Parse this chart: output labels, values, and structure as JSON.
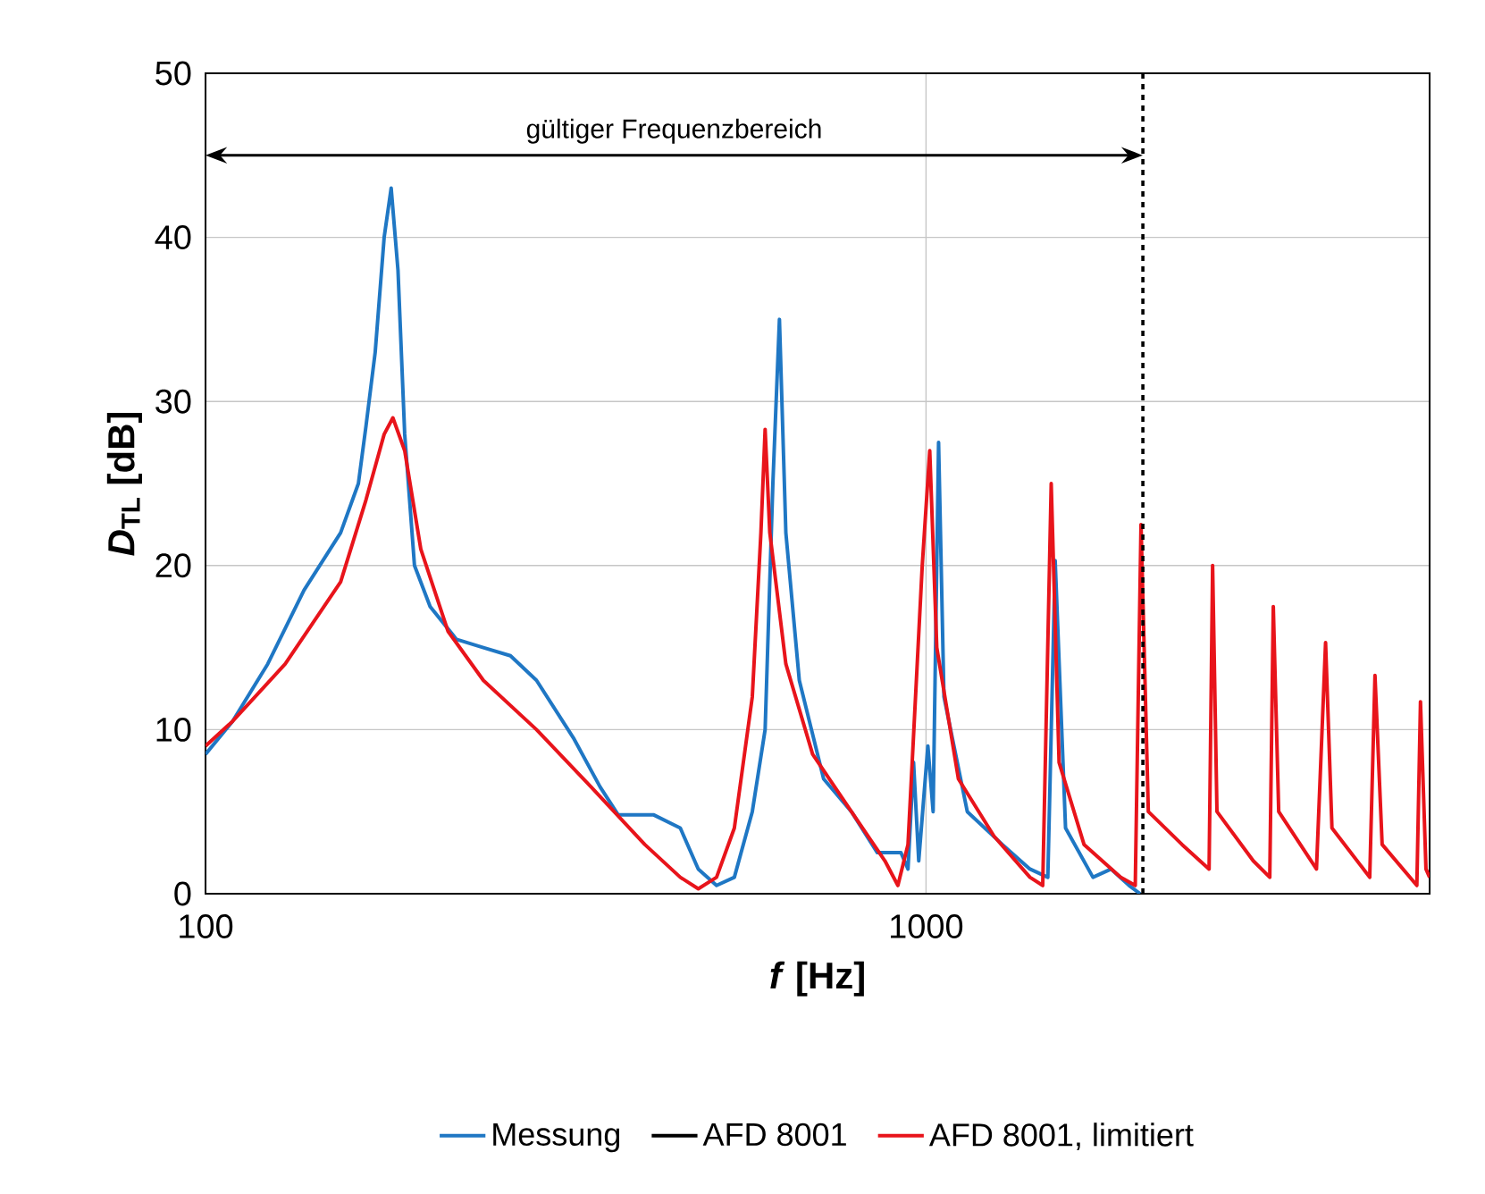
{
  "chart_data": {
    "type": "line",
    "xlabel": "*f* [Hz]",
    "ylabel": "*D*$_{TL}$ [dB]",
    "log": "x",
    "xlim": [
      100,
      5000
    ],
    "xticks": [
      100,
      1000
    ],
    "ylim": [
      0,
      50
    ],
    "yticks": [
      0,
      10,
      20,
      30,
      40,
      50
    ],
    "grid": true,
    "legend": "bottom",
    "ref_lines": [
      {
        "axis": "x",
        "value": 2000,
        "color": "#000000",
        "line_style": "dashed"
      }
    ],
    "annotations": [
      "gültiger Frequenzbereich"
    ],
    "series": [
      {
        "name": "Messung",
        "color": "#1f77c4",
        "x": [
          100,
          109,
          122,
          137,
          154,
          163,
          167,
          172,
          177,
          181,
          185,
          189,
          195,
          205,
          223,
          243,
          265,
          288,
          324,
          353,
          374,
          419,
          456,
          483,
          512,
          542,
          574,
          598,
          613,
          626,
          639,
          667,
          721,
          788,
          856,
          923,
          944,
          961,
          977,
          1006,
          1023,
          1041,
          1059,
          1141,
          1276,
          1394,
          1476,
          1511,
          1562,
          1705,
          1807,
          1914,
          1982
        ],
        "values": [
          8.5,
          10.5,
          14,
          18.5,
          22,
          25,
          28.5,
          33,
          40,
          43,
          38,
          28,
          20,
          17.5,
          15.5,
          15,
          14.5,
          13,
          9.5,
          6.5,
          4.8,
          4.8,
          4,
          1.5,
          0.5,
          1,
          5,
          10,
          25,
          35,
          22,
          13,
          7,
          5,
          2.5,
          2.5,
          1.5,
          8,
          2,
          9,
          5,
          27.5,
          12,
          5,
          3,
          1.5,
          1,
          20.3,
          4,
          1,
          1.5,
          0.5,
          0
        ]
      },
      {
        "name": "AFD 8001",
        "color": "#000000"
      },
      {
        "name": "AFD 8001, limitiert",
        "color": "#e8141b",
        "x": [
          100,
          109,
          129,
          154,
          167,
          177,
          182,
          189,
          199,
          217,
          243,
          288,
          343,
          407,
          456,
          483,
          512,
          542,
          574,
          590,
          598,
          607,
          639,
          696,
          788,
          877,
          914,
          944,
          988,
          1012,
          1035,
          1109,
          1243,
          1394,
          1452,
          1492,
          1530,
          1657,
          1862,
          1952,
          1988,
          2035,
          2266,
          2471,
          2499,
          2534,
          2846,
          3000,
          3034,
          3087,
          3483,
          3586,
          3660,
          4129,
          4199,
          4296,
          4800,
          4856,
          4942,
          5000
        ],
        "values": [
          9,
          10.5,
          14,
          19,
          24,
          28,
          29,
          27,
          21,
          16,
          13,
          10,
          6.5,
          3,
          1,
          0.3,
          1,
          4,
          12,
          22,
          28.3,
          22,
          14,
          8.5,
          5,
          2,
          0.5,
          3,
          20,
          27,
          15,
          7,
          3.5,
          1,
          0.5,
          25,
          8,
          3,
          1,
          0.5,
          22.5,
          5,
          3,
          1.5,
          20,
          5,
          2,
          1,
          17.5,
          5,
          1.5,
          15.3,
          4,
          1,
          13.3,
          3,
          0.5,
          11.7,
          1.5,
          1
        ]
      }
    ]
  }
}
